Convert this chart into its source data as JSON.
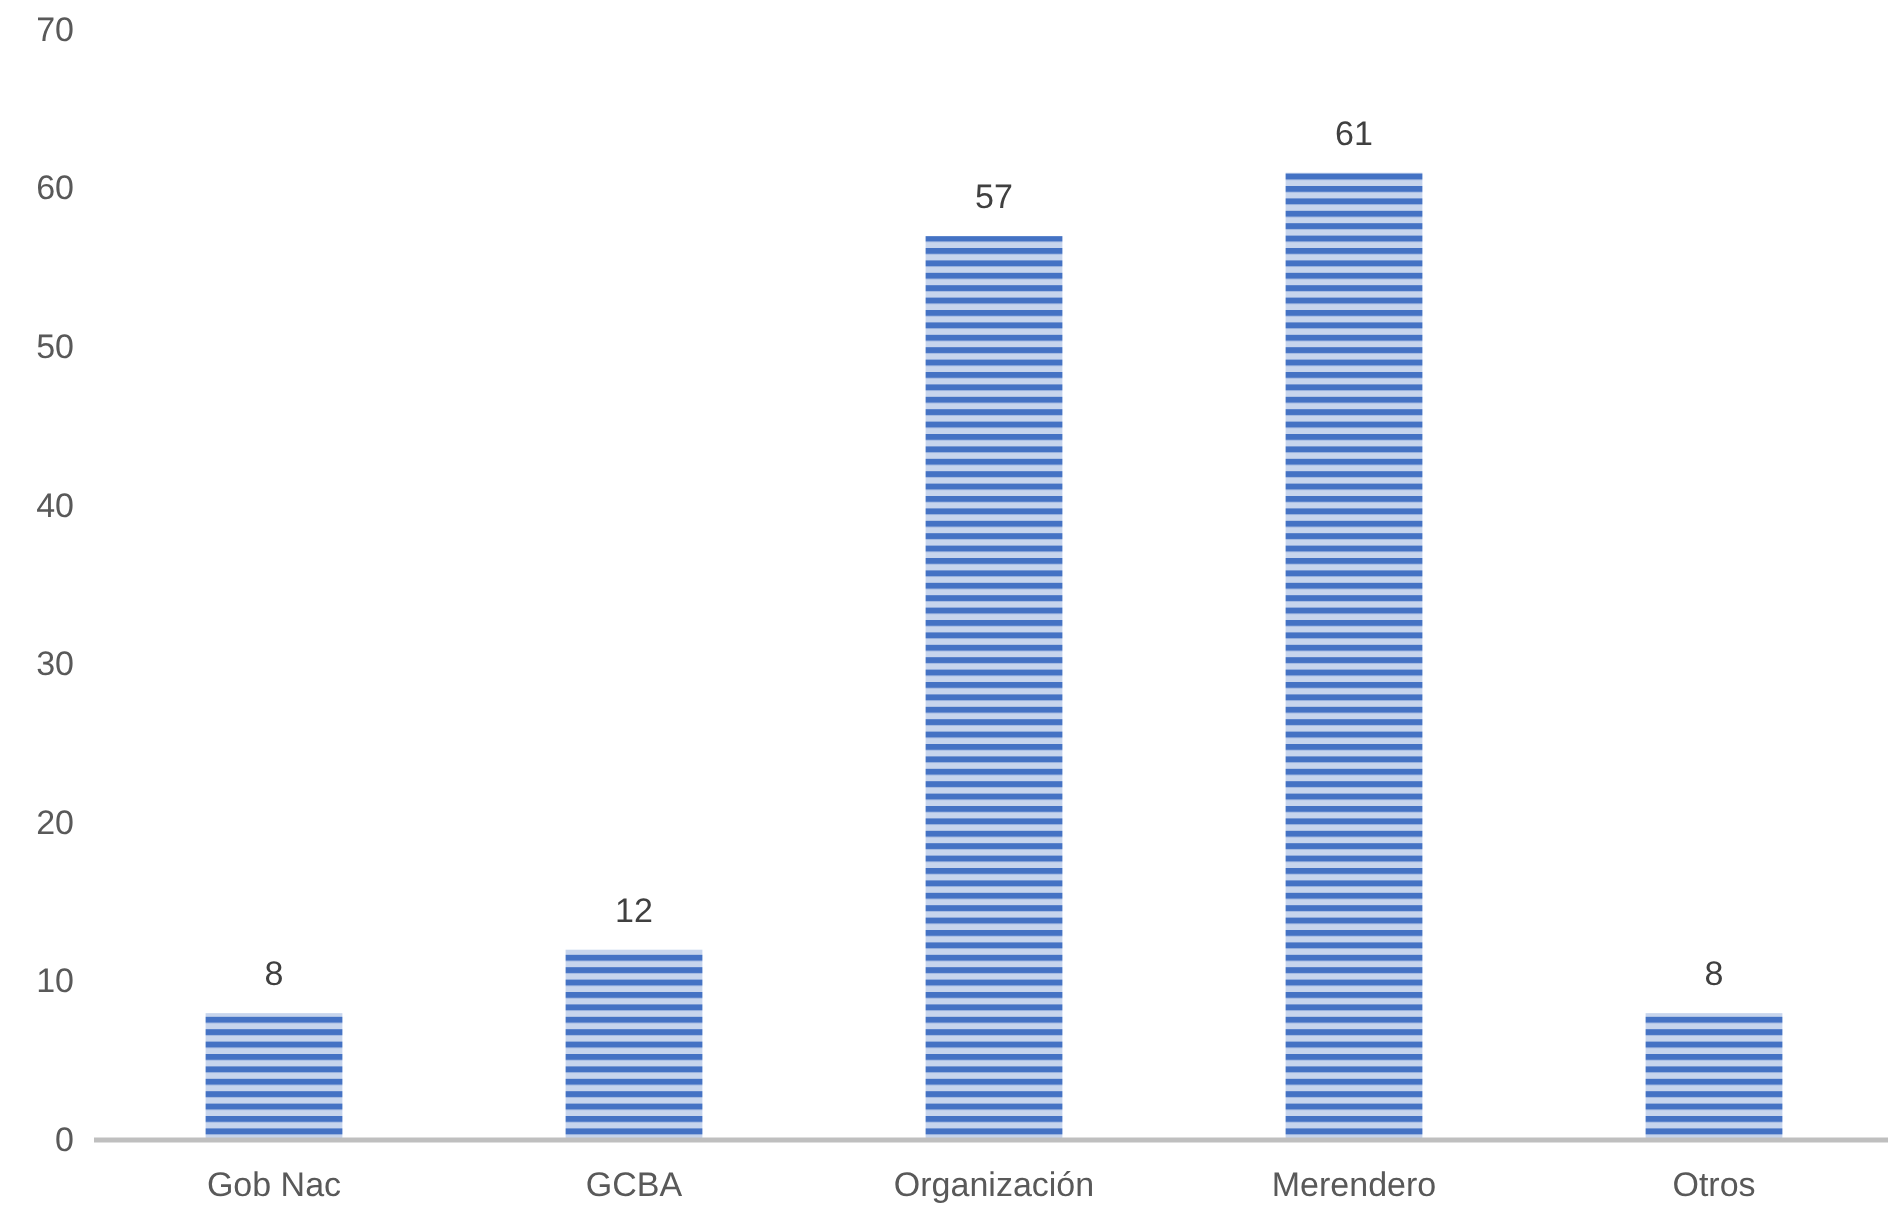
{
  "chart_data": {
    "type": "bar",
    "categories": [
      "Gob Nac",
      "GCBA",
      "Organización",
      "Merendero",
      "Otros"
    ],
    "values": [
      8,
      12,
      57,
      61,
      8
    ],
    "color": "#4472c4",
    "data_labels": true,
    "ylim": [
      0,
      70
    ],
    "yticks": [
      0,
      10,
      20,
      30,
      40,
      50,
      60,
      70
    ]
  }
}
